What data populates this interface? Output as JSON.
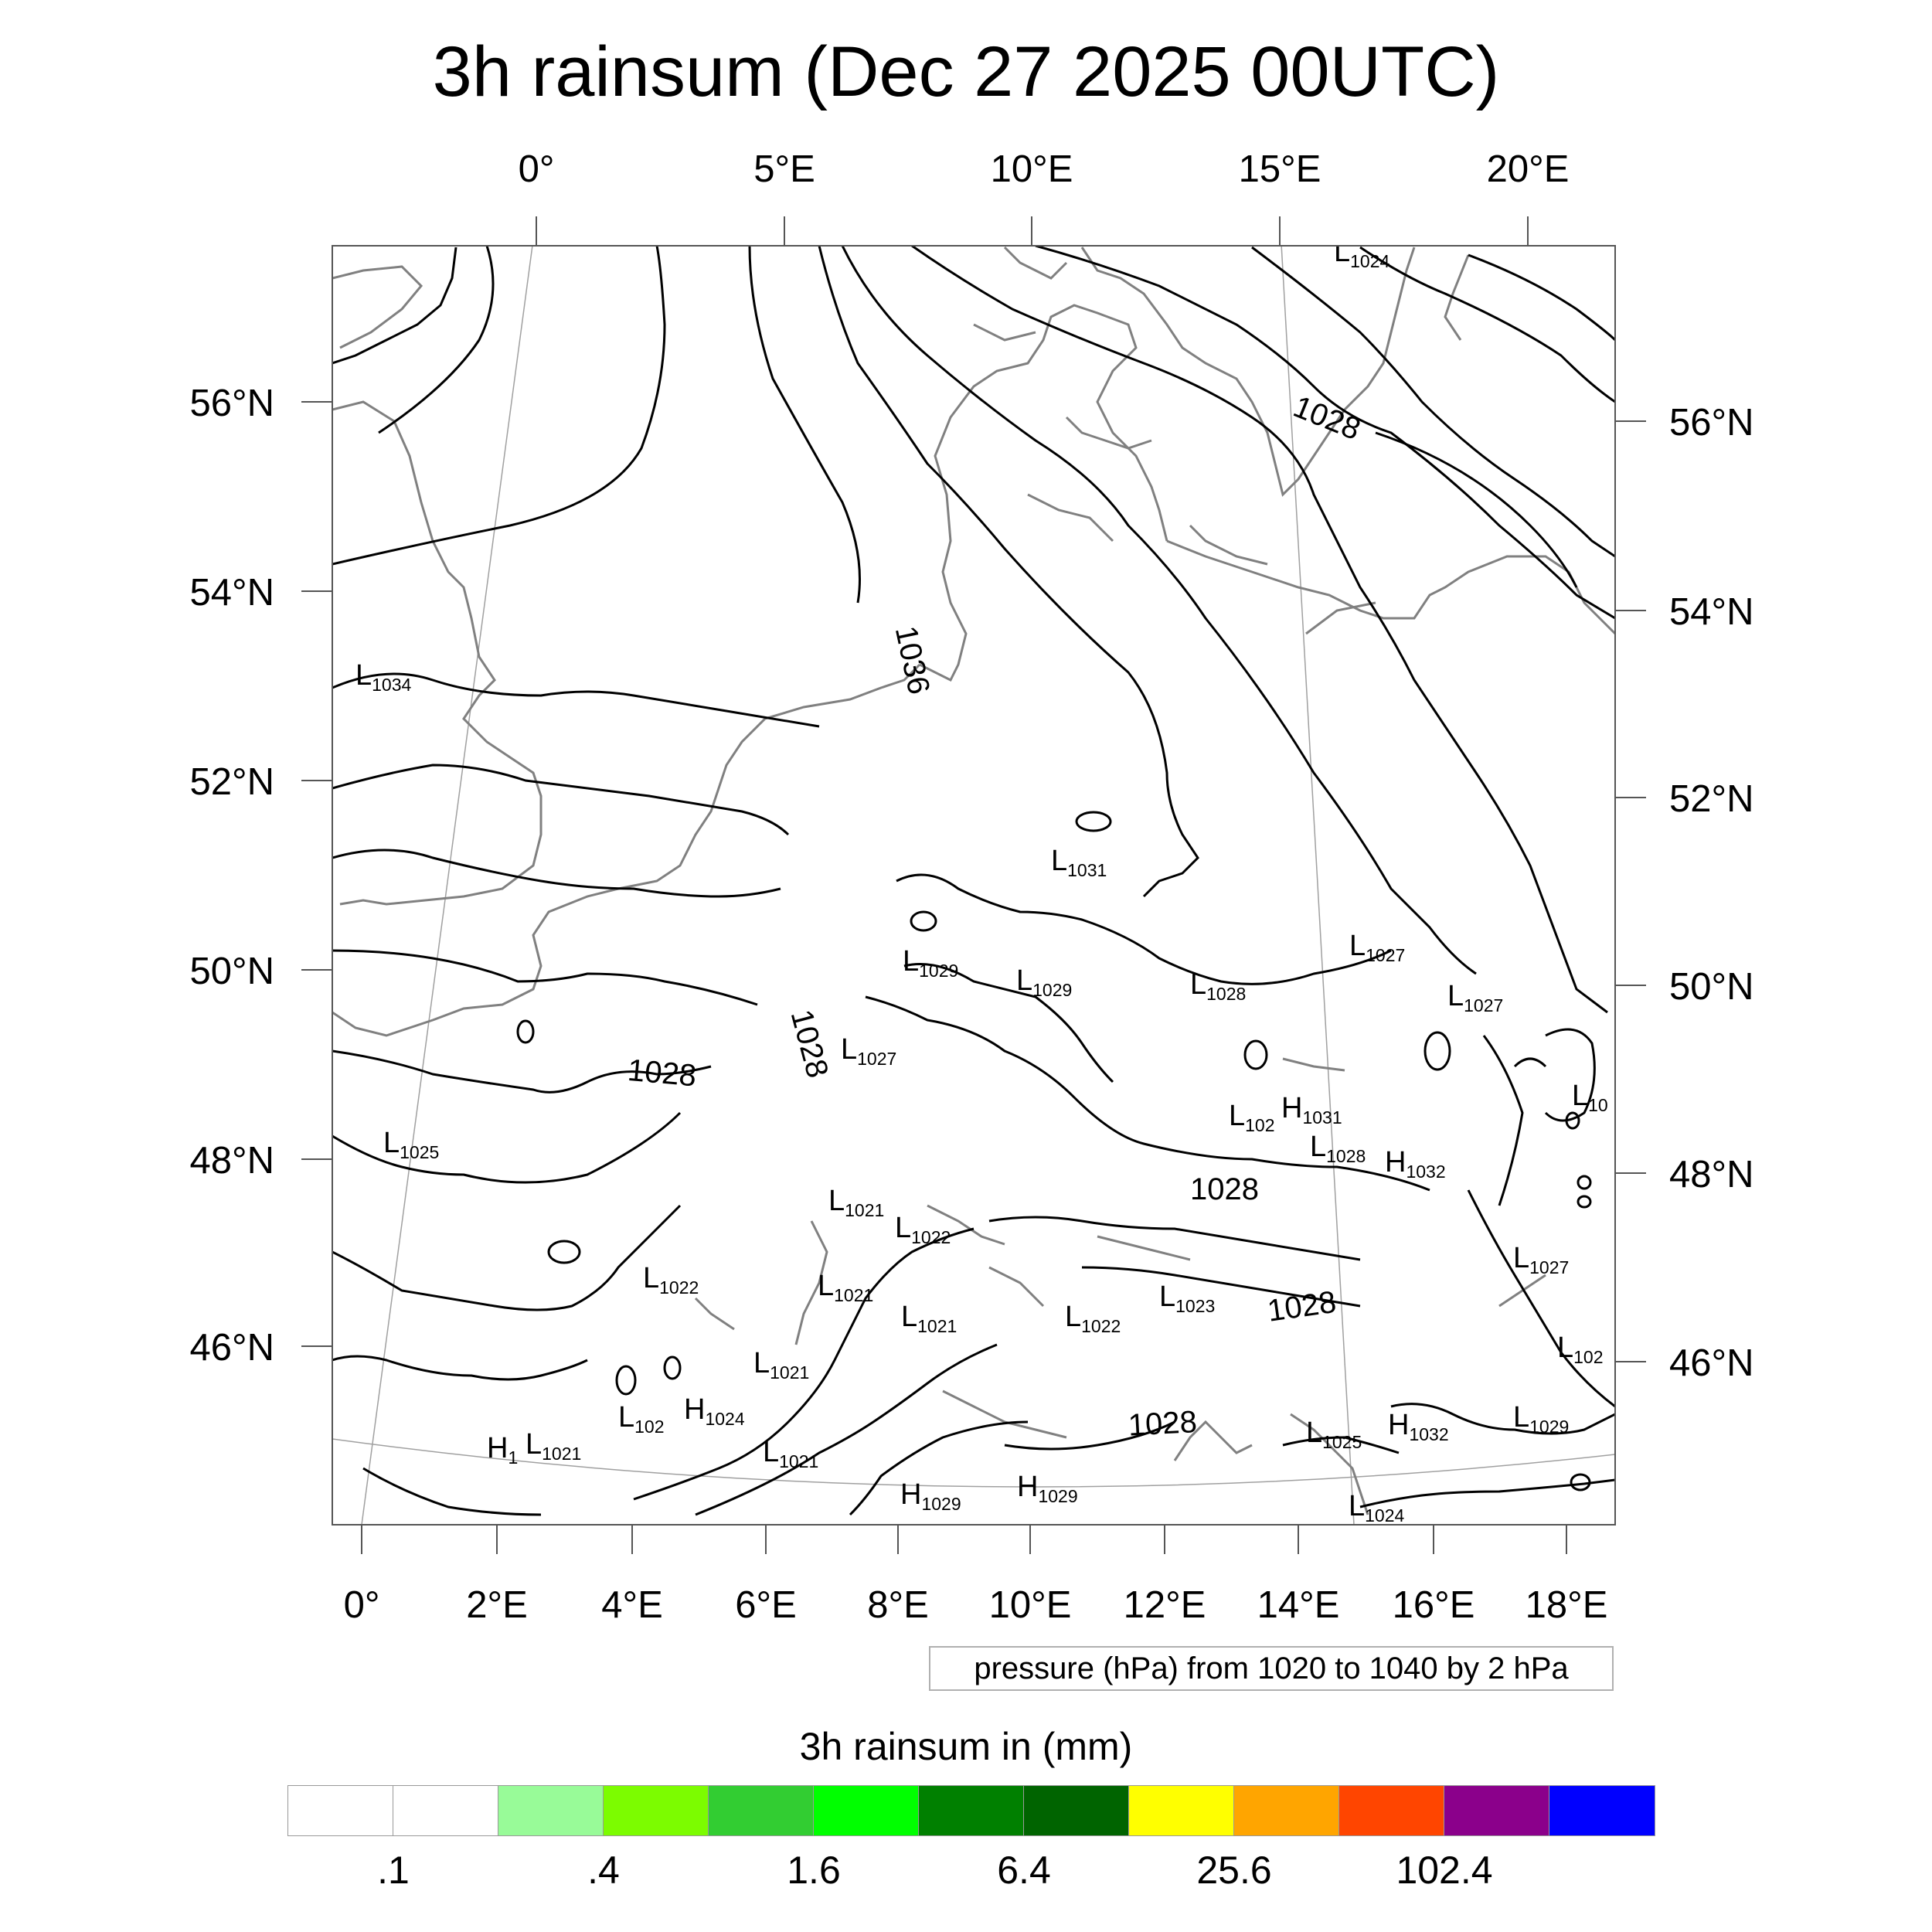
{
  "title": "3h rainsum (Dec 27 2025 00UTC)",
  "top_lon_labels": [
    "0°",
    "5°E",
    "10°E",
    "15°E",
    "20°E"
  ],
  "bottom_lon_labels": [
    "0°",
    "2°E",
    "4°E",
    "6°E",
    "8°E",
    "10°E",
    "12°E",
    "14°E",
    "16°E",
    "18°E"
  ],
  "left_lat_labels": [
    "56°N",
    "54°N",
    "52°N",
    "50°N",
    "48°N",
    "46°N"
  ],
  "right_lat_labels": [
    "56°N",
    "54°N",
    "52°N",
    "50°N",
    "48°N",
    "46°N"
  ],
  "pressure_labels": [
    "1036",
    "1028",
    "1028",
    "1028",
    "1028",
    "1028",
    "1028"
  ],
  "centers": [
    {
      "type": "L",
      "value": "1024"
    },
    {
      "type": "L",
      "value": "1034"
    },
    {
      "type": "L",
      "value": "1031"
    },
    {
      "type": "L",
      "value": "1027"
    },
    {
      "type": "L",
      "value": "1027"
    },
    {
      "type": "L",
      "value": "1029"
    },
    {
      "type": "L",
      "value": "1029"
    },
    {
      "type": "L",
      "value": "1028"
    },
    {
      "type": "L",
      "value": "1027"
    },
    {
      "type": "L",
      "value": "10"
    },
    {
      "type": "L",
      "value": "102"
    },
    {
      "type": "H",
      "value": "1031"
    },
    {
      "type": "L",
      "value": "1025"
    },
    {
      "type": "L",
      "value": "1028"
    },
    {
      "type": "H",
      "value": "1032"
    },
    {
      "type": "L",
      "value": "1021"
    },
    {
      "type": "L",
      "value": "1022"
    },
    {
      "type": "L",
      "value": "1027"
    },
    {
      "type": "L",
      "value": "1022"
    },
    {
      "type": "L",
      "value": "1021"
    },
    {
      "type": "L",
      "value": "1021"
    },
    {
      "type": "L",
      "value": "1022"
    },
    {
      "type": "L",
      "value": "1023"
    },
    {
      "type": "L",
      "value": "102"
    },
    {
      "type": "L",
      "value": "1021"
    },
    {
      "type": "L",
      "value": "102"
    },
    {
      "type": "H",
      "value": "1024"
    },
    {
      "type": "H",
      "value": "1"
    },
    {
      "type": "L",
      "value": "1021"
    },
    {
      "type": "L",
      "value": "1021"
    },
    {
      "type": "L",
      "value": "1025"
    },
    {
      "type": "H",
      "value": "1032"
    },
    {
      "type": "L",
      "value": "1029"
    },
    {
      "type": "H",
      "value": "1029"
    },
    {
      "type": "H",
      "value": "1029"
    },
    {
      "type": "L",
      "value": "1024"
    }
  ],
  "info_box": "pressure (hPa) from 1020 to 1040 by 2 hPa",
  "colorbar": {
    "title": "3h rainsum in (mm)",
    "colors": [
      "#ffffff",
      "#ffffff",
      "#98fb98",
      "#7cfc00",
      "#32cd32",
      "#00ff00",
      "#008000",
      "#006400",
      "#ffff00",
      "#ffa500",
      "#ff4500",
      "#8b008b",
      "#0000ff"
    ],
    "labels": [
      ".1",
      ".4",
      "1.6",
      "6.4",
      "25.6",
      "102.4"
    ]
  }
}
